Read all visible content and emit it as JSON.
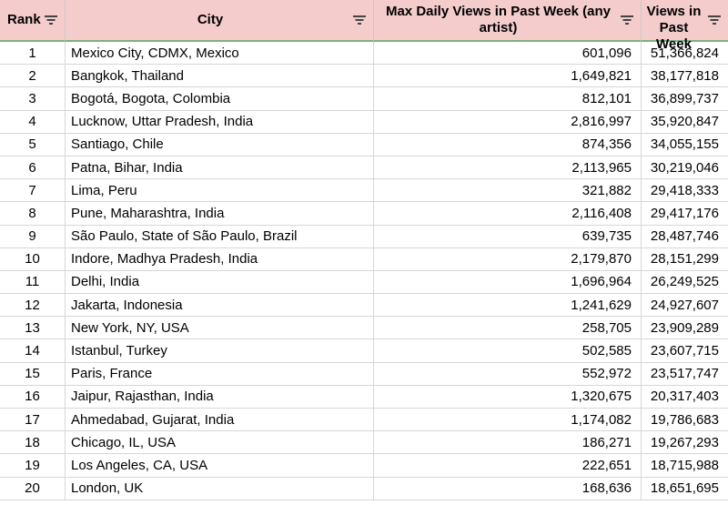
{
  "headers": {
    "rank": "Rank",
    "city": "City",
    "max_views": "Max Daily Views in Past Week (any artist)",
    "summed_views": "Summed Views in Past Week"
  },
  "header_icons": [
    "filter-icon",
    "filter-icon",
    "filter-icon",
    "filter-icon"
  ],
  "colors": {
    "header_bg": "#f4cccc",
    "header_border": "#7fb07f",
    "grid": "#d6d6d6"
  },
  "rows": [
    {
      "rank": "1",
      "city": "Mexico City, CDMX, Mexico",
      "max": "601,096",
      "sum": "51,366,824"
    },
    {
      "rank": "2",
      "city": "Bangkok, Thailand",
      "max": "1,649,821",
      "sum": "38,177,818"
    },
    {
      "rank": "3",
      "city": "Bogotá, Bogota, Colombia",
      "max": "812,101",
      "sum": "36,899,737"
    },
    {
      "rank": "4",
      "city": "Lucknow, Uttar Pradesh, India",
      "max": "2,816,997",
      "sum": "35,920,847"
    },
    {
      "rank": "5",
      "city": "Santiago, Chile",
      "max": "874,356",
      "sum": "34,055,155"
    },
    {
      "rank": "6",
      "city": "Patna, Bihar, India",
      "max": "2,113,965",
      "sum": "30,219,046"
    },
    {
      "rank": "7",
      "city": "Lima, Peru",
      "max": "321,882",
      "sum": "29,418,333"
    },
    {
      "rank": "8",
      "city": "Pune, Maharashtra, India",
      "max": "2,116,408",
      "sum": "29,417,176"
    },
    {
      "rank": "9",
      "city": "São Paulo, State of São Paulo, Brazil",
      "max": "639,735",
      "sum": "28,487,746"
    },
    {
      "rank": "10",
      "city": "Indore, Madhya Pradesh, India",
      "max": "2,179,870",
      "sum": "28,151,299"
    },
    {
      "rank": "11",
      "city": "Delhi, India",
      "max": "1,696,964",
      "sum": "26,249,525"
    },
    {
      "rank": "12",
      "city": "Jakarta, Indonesia",
      "max": "1,241,629",
      "sum": "24,927,607"
    },
    {
      "rank": "13",
      "city": "New York, NY, USA",
      "max": "258,705",
      "sum": "23,909,289"
    },
    {
      "rank": "14",
      "city": "Istanbul, Turkey",
      "max": "502,585",
      "sum": "23,607,715"
    },
    {
      "rank": "15",
      "city": "Paris, France",
      "max": "552,972",
      "sum": "23,517,747"
    },
    {
      "rank": "16",
      "city": "Jaipur, Rajasthan, India",
      "max": "1,320,675",
      "sum": "20,317,403"
    },
    {
      "rank": "17",
      "city": "Ahmedabad, Gujarat, India",
      "max": "1,174,082",
      "sum": "19,786,683"
    },
    {
      "rank": "18",
      "city": "Chicago, IL, USA",
      "max": "186,271",
      "sum": "19,267,293"
    },
    {
      "rank": "19",
      "city": "Los Angeles, CA, USA",
      "max": "222,651",
      "sum": "18,715,988"
    },
    {
      "rank": "20",
      "city": "London, UK",
      "max": "168,636",
      "sum": "18,651,695"
    }
  ]
}
